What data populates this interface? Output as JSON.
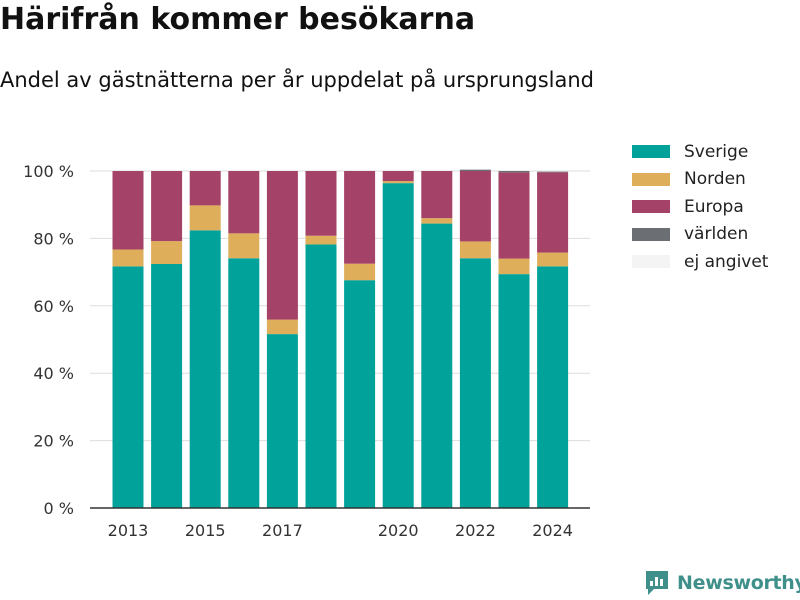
{
  "header": {
    "title": "Härifrån kommer besökarna",
    "subtitle": "Andel av gästnätterna per år uppdelat på ursprungsland"
  },
  "chart_data": {
    "type": "bar",
    "stacked": true,
    "categories": [
      "2013",
      "2014",
      "2015",
      "2016",
      "2017",
      "2018",
      "2019",
      "2020",
      "2021",
      "2022",
      "2023",
      "2024"
    ],
    "x_tick_labels": [
      "2013",
      "",
      "2015",
      "",
      "2017",
      "",
      "",
      "2020",
      "",
      "2022",
      "",
      "2024"
    ],
    "y_ticks": [
      0,
      20,
      40,
      60,
      80,
      100
    ],
    "y_tick_labels": [
      "0 %",
      "20 %",
      "40 %",
      "60 %",
      "80 %",
      "100 %"
    ],
    "ylim": [
      0,
      100
    ],
    "grid": "horizontal",
    "legend_position": "right",
    "series": [
      {
        "name": "Sverige",
        "color": "#00a29a",
        "values": [
          71.7,
          72.4,
          82.4,
          74.1,
          51.6,
          78.2,
          67.6,
          96.4,
          84.4,
          74.1,
          69.4,
          71.7
        ]
      },
      {
        "name": "Norden",
        "color": "#deae5a",
        "values": [
          5.0,
          6.8,
          7.4,
          7.4,
          4.3,
          2.6,
          4.9,
          0.6,
          1.6,
          5.0,
          4.6,
          4.1
        ]
      },
      {
        "name": "Europa",
        "color": "#a54267",
        "values": [
          23.3,
          20.8,
          10.2,
          18.5,
          44.1,
          19.2,
          27.5,
          3.0,
          14.0,
          20.9,
          25.6,
          23.8
        ]
      },
      {
        "name": "världen",
        "color": "#6b6e73",
        "values": [
          0,
          0,
          0,
          0,
          0,
          0,
          0,
          0,
          0,
          0.4,
          0.4,
          0.2
        ]
      },
      {
        "name": "ej angivet",
        "color": "#f4f4f4",
        "values": [
          0,
          0,
          0,
          0,
          0,
          0,
          0,
          0,
          0,
          0,
          0,
          0
        ]
      }
    ]
  },
  "branding": {
    "logo_text": "Newsworthy",
    "logo_icon": "chart-logo-icon",
    "color": "#3f8f8a"
  }
}
